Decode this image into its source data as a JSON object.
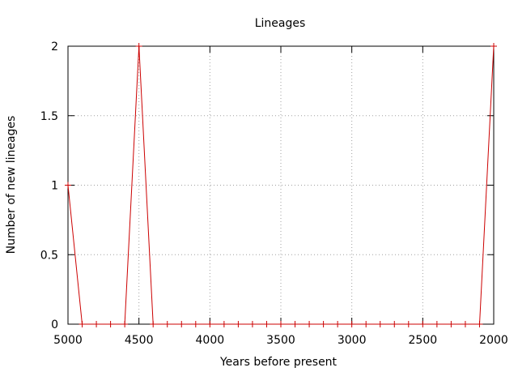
{
  "chart_data": {
    "type": "line",
    "title": "Lineages",
    "xlabel": "Years before present",
    "ylabel": "Number of new lineages",
    "xlim": [
      5000,
      2000
    ],
    "x_reversed": true,
    "ylim": [
      0,
      2
    ],
    "grid": true,
    "x_ticks": [
      5000,
      4500,
      4000,
      3500,
      3000,
      2500,
      2000
    ],
    "x_tick_labels": [
      "5000",
      "4500",
      "4000",
      "3500",
      "3000",
      "2500",
      "2000"
    ],
    "y_ticks": [
      0,
      0.5,
      1,
      1.5,
      2
    ],
    "y_tick_labels": [
      "0",
      "0.5",
      "1",
      "1.5",
      "2"
    ],
    "series": [
      {
        "color": "#cc0000",
        "marker": "plus",
        "x": [
          5000,
          4900,
          4800,
          4700,
          4600,
          4500,
          4400,
          4300,
          4200,
          4100,
          4000,
          3900,
          3800,
          3700,
          3600,
          3500,
          3400,
          3300,
          3200,
          3100,
          3000,
          2900,
          2800,
          2700,
          2600,
          2500,
          2400,
          2300,
          2200,
          2100,
          2000
        ],
        "y": [
          1,
          0,
          0,
          0,
          0,
          2,
          0,
          0,
          0,
          0,
          0,
          0,
          0,
          0,
          0,
          0,
          0,
          0,
          0,
          0,
          0,
          0,
          0,
          0,
          0,
          0,
          0,
          0,
          0,
          0,
          2
        ]
      }
    ]
  }
}
